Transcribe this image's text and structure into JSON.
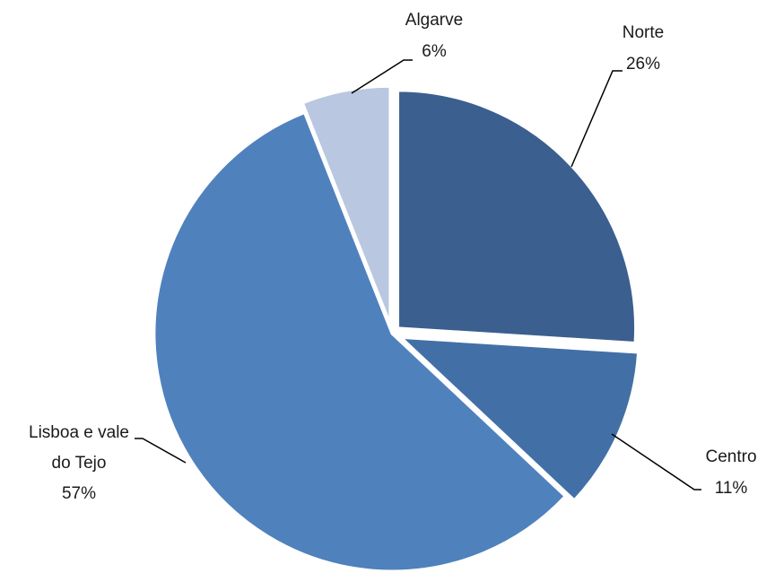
{
  "chart_data": {
    "type": "pie",
    "slices": [
      {
        "name": "Norte",
        "value": 26,
        "label": "26%",
        "color": "#3b5f8f"
      },
      {
        "name": "Centro",
        "value": 11,
        "label": "11%",
        "color": "#4270a6"
      },
      {
        "name": "Lisboa e vale do Tejo",
        "value": 57,
        "label": "57%",
        "color": "#4f81bd"
      },
      {
        "name": "Algarve",
        "value": 6,
        "label": "6%",
        "color": "#b9c7e0"
      }
    ],
    "legend": "none",
    "exploded": true
  }
}
